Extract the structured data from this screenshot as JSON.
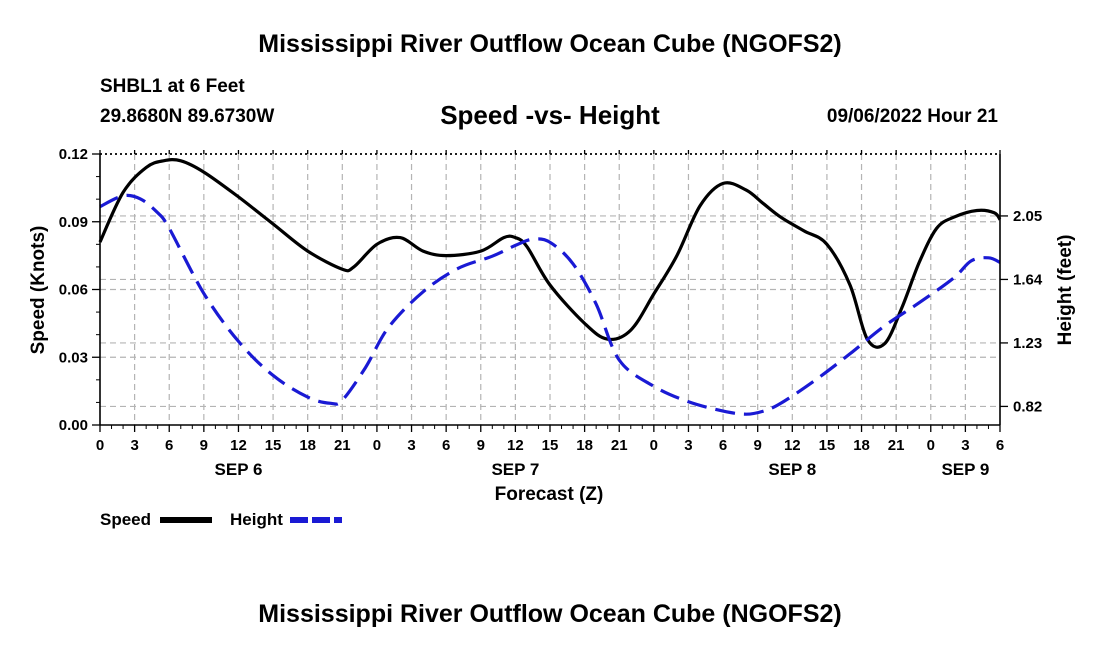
{
  "header": {
    "title": "Mississippi River Outflow Ocean Cube (NGOFS2)",
    "station": "SHBL1 at 6 Feet",
    "coords": "29.8680N  89.6730W",
    "subtitle": "Speed -vs- Height",
    "timestamp": "09/06/2022 Hour 21"
  },
  "footer": {
    "title": "Mississippi River Outflow Ocean Cube (NGOFS2)"
  },
  "colors": {
    "speed": "#000000",
    "height": "#1a1ad4",
    "grid": "#b4b4b4"
  },
  "chart_data": {
    "type": "line",
    "title": "Speed -vs- Height",
    "xlabel": "Forecast (Z)",
    "ylabel": "Speed (Knots)",
    "y2label": "Height (feet)",
    "grid": true,
    "x_hour_range": [
      0,
      78
    ],
    "hour_tick_labels": [
      "0",
      "3",
      "6",
      "9",
      "12",
      "15",
      "18",
      "21",
      "0",
      "3",
      "6",
      "9",
      "12",
      "15",
      "18",
      "21",
      "0",
      "3",
      "6",
      "9",
      "12",
      "15",
      "18",
      "21",
      "0",
      "3",
      "6"
    ],
    "date_labels": [
      {
        "label": "SEP 6",
        "hour": 12
      },
      {
        "label": "SEP 7",
        "hour": 36
      },
      {
        "label": "SEP 8",
        "hour": 60
      },
      {
        "label": "SEP 9",
        "hour": 75
      }
    ],
    "y_range": [
      0,
      0.12
    ],
    "y_ticks": [
      "0.00",
      "0.03",
      "0.06",
      "0.09",
      "0.12"
    ],
    "y2_range": [
      0.7,
      2.45
    ],
    "y2_ticks": [
      "0.82",
      "1.23",
      "1.64",
      "2.05"
    ],
    "legend": {
      "position": "bottom-left",
      "entries": [
        "Speed",
        "Height"
      ]
    },
    "series": [
      {
        "name": "Speed",
        "axis": "left",
        "style": "solid",
        "x": [
          0,
          2,
          4,
          5.5,
          7,
          9,
          12,
          15,
          18,
          21,
          22,
          24,
          26,
          28,
          30,
          33,
          35,
          36,
          37,
          39,
          42,
          44,
          46,
          48,
          50,
          52,
          54,
          56,
          57.5,
          59,
          61,
          63,
          65,
          66.5,
          68,
          69.5,
          71,
          72.5,
          74,
          76,
          77.5,
          78
        ],
        "values": [
          0.081,
          0.103,
          0.114,
          0.117,
          0.117,
          0.112,
          0.101,
          0.089,
          0.077,
          0.069,
          0.07,
          0.08,
          0.083,
          0.077,
          0.075,
          0.077,
          0.083,
          0.083,
          0.079,
          0.062,
          0.045,
          0.038,
          0.042,
          0.058,
          0.075,
          0.097,
          0.107,
          0.104,
          0.098,
          0.092,
          0.086,
          0.08,
          0.062,
          0.038,
          0.036,
          0.052,
          0.072,
          0.087,
          0.092,
          0.095,
          0.094,
          0.091
        ]
      },
      {
        "name": "Height",
        "axis": "right",
        "style": "dashed",
        "x": [
          0,
          2,
          3.5,
          5,
          6,
          9,
          12,
          15,
          18,
          20,
          21,
          23,
          25,
          28,
          31,
          34,
          36,
          37.5,
          39,
          41,
          43,
          45,
          48,
          51,
          54,
          56,
          57.5,
          59,
          62,
          65,
          68,
          71,
          74,
          75.5,
          77,
          78
        ],
        "values": [
          2.11,
          2.18,
          2.16,
          2.07,
          1.97,
          1.55,
          1.24,
          1.02,
          0.88,
          0.84,
          0.86,
          1.07,
          1.33,
          1.56,
          1.71,
          1.79,
          1.86,
          1.9,
          1.88,
          1.74,
          1.48,
          1.12,
          0.95,
          0.85,
          0.79,
          0.77,
          0.79,
          0.84,
          0.99,
          1.16,
          1.34,
          1.49,
          1.65,
          1.76,
          1.78,
          1.75
        ]
      }
    ]
  }
}
